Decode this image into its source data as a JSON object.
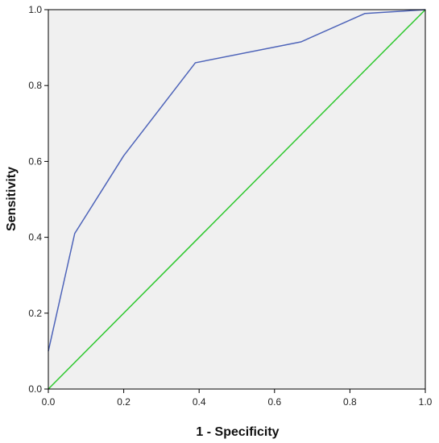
{
  "chart_data": {
    "type": "line",
    "title": "",
    "xlabel": "1 - Specificity",
    "ylabel": "Sensitivity",
    "xlim": [
      0,
      1
    ],
    "ylim": [
      0,
      1
    ],
    "x_ticks": [
      "0.0",
      "0.2",
      "0.4",
      "0.6",
      "0.8",
      "1.0"
    ],
    "y_ticks": [
      "0.0",
      "0.2",
      "0.4",
      "0.6",
      "0.8",
      "1.0"
    ],
    "grid": false,
    "legend": "none",
    "colors": {
      "plot_background": "#f0f0f0",
      "roc_curve": "#4e64b9",
      "reference_line": "#2ec82e",
      "frame": "#000000"
    },
    "series": [
      {
        "points": [
          {
            "x": 0.0,
            "y": 0.1
          },
          {
            "x": 0.07,
            "y": 0.41
          },
          {
            "x": 0.2,
            "y": 0.615
          },
          {
            "x": 0.39,
            "y": 0.86
          },
          {
            "x": 0.67,
            "y": 0.915
          },
          {
            "x": 0.84,
            "y": 0.99
          },
          {
            "x": 1.0,
            "y": 1.0
          }
        ]
      },
      {
        "points": [
          {
            "x": 0.0,
            "y": 0.0
          },
          {
            "x": 1.0,
            "y": 1.0
          }
        ]
      }
    ]
  }
}
